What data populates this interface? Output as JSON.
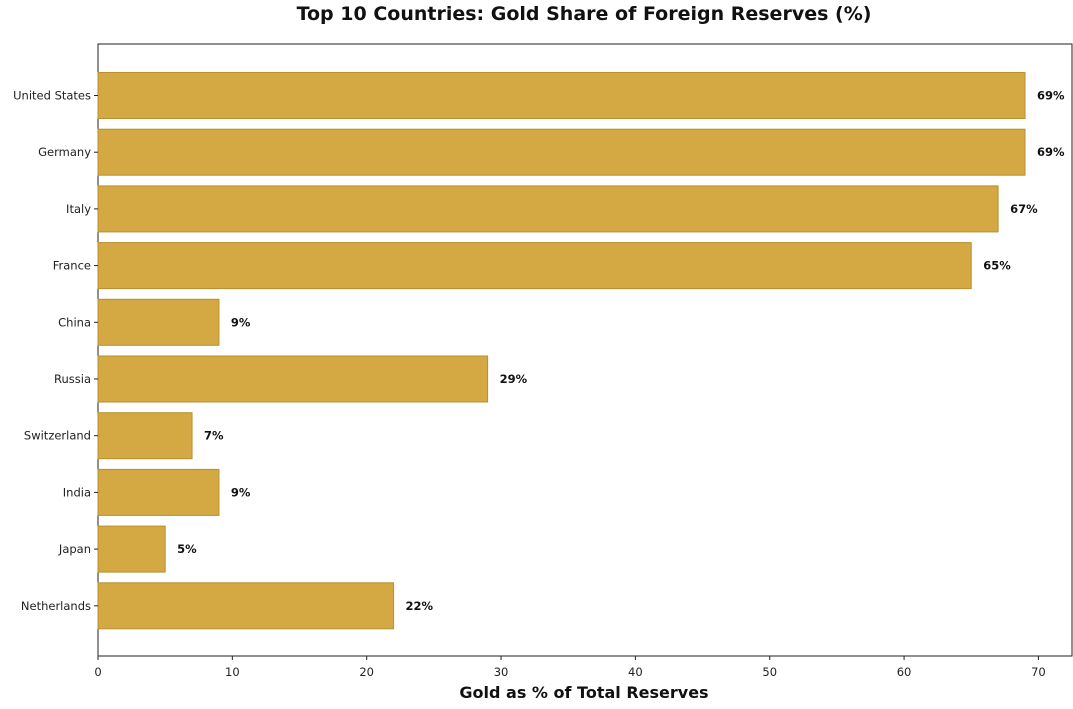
{
  "chart_data": {
    "type": "bar",
    "orientation": "horizontal",
    "title": "Top 10 Countries: Gold Share of Foreign Reserves (%)",
    "xlabel": "Gold as % of Total Reserves",
    "ylabel": "",
    "categories": [
      "United States",
      "Germany",
      "Italy",
      "France",
      "China",
      "Russia",
      "Switzerland",
      "India",
      "Japan",
      "Netherlands"
    ],
    "values": [
      69,
      69,
      67,
      65,
      9,
      29,
      7,
      9,
      5,
      22
    ],
    "data_labels": [
      "69%",
      "69%",
      "67%",
      "65%",
      "9%",
      "29%",
      "7%",
      "9%",
      "5%",
      "22%"
    ],
    "xlim": [
      0,
      72.5
    ],
    "xticks": [
      0,
      10,
      20,
      30,
      40,
      50,
      60,
      70
    ],
    "grid": false,
    "legend": "none",
    "colors": {
      "bar_fill": "#D4A843",
      "bar_edge": "#B8902E"
    }
  }
}
